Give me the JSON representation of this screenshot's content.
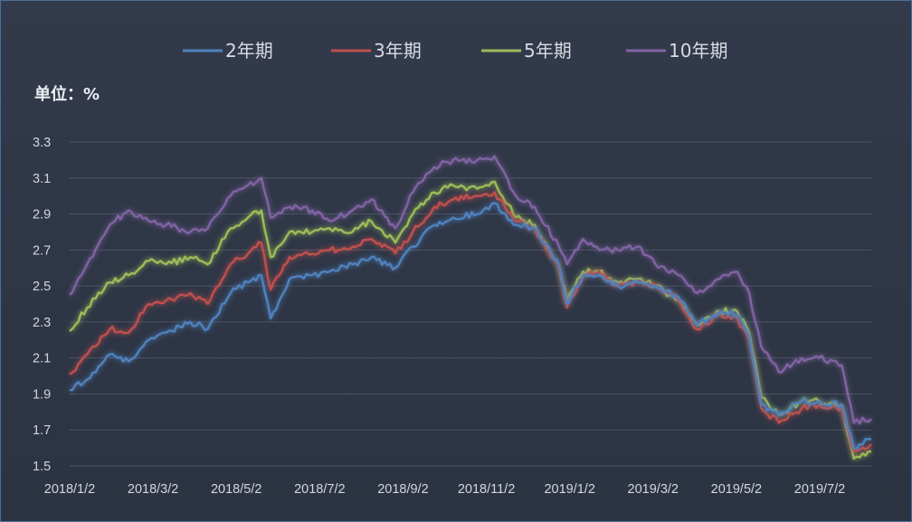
{
  "chart_data": {
    "type": "line",
    "unit_label": "单位：%",
    "x_tick_labels": [
      "2018/1/2",
      "2018/3/2",
      "2018/5/2",
      "2018/7/2",
      "2018/9/2",
      "2018/11/2",
      "2019/1/2",
      "2019/3/2",
      "2019/5/2",
      "2019/7/2"
    ],
    "y_ticks": [
      "1.5",
      "1.7",
      "1.9",
      "2.1",
      "2.3",
      "2.5",
      "2.7",
      "2.9",
      "3.1",
      "3.3"
    ],
    "ylim": [
      1.5,
      3.3
    ],
    "xlim": [
      "2018-01-02",
      "2019-08-23"
    ],
    "grid": "horizontal",
    "legend_position": "top",
    "x": [
      "2018-01-02",
      "2018-01-15",
      "2018-02-01",
      "2018-02-15",
      "2018-03-02",
      "2018-03-15",
      "2018-04-02",
      "2018-04-15",
      "2018-05-02",
      "2018-05-15",
      "2018-05-25",
      "2018-06-01",
      "2018-06-15",
      "2018-07-02",
      "2018-07-15",
      "2018-08-01",
      "2018-08-15",
      "2018-09-02",
      "2018-09-15",
      "2018-10-01",
      "2018-10-15",
      "2018-11-02",
      "2018-11-15",
      "2018-12-01",
      "2018-12-15",
      "2019-01-02",
      "2019-01-08",
      "2019-01-20",
      "2019-02-01",
      "2019-02-15",
      "2019-03-02",
      "2019-03-15",
      "2019-04-01",
      "2019-04-15",
      "2019-05-02",
      "2019-05-15",
      "2019-05-24",
      "2019-06-02",
      "2019-06-15",
      "2019-07-02",
      "2019-07-15",
      "2019-08-01",
      "2019-08-10",
      "2019-08-23"
    ],
    "series": [
      {
        "name": "2年期",
        "color": "#4f81bd",
        "values": [
          1.92,
          1.98,
          2.12,
          2.08,
          2.2,
          2.24,
          2.3,
          2.26,
          2.46,
          2.52,
          2.56,
          2.32,
          2.54,
          2.56,
          2.58,
          2.62,
          2.66,
          2.6,
          2.72,
          2.84,
          2.88,
          2.9,
          2.96,
          2.84,
          2.82,
          2.62,
          2.4,
          2.56,
          2.56,
          2.5,
          2.52,
          2.5,
          2.44,
          2.28,
          2.36,
          2.34,
          2.22,
          1.84,
          1.78,
          1.86,
          1.86,
          1.84,
          1.6,
          1.65
        ]
      },
      {
        "name": "3年期",
        "color": "#c0504d",
        "values": [
          2.01,
          2.12,
          2.26,
          2.24,
          2.4,
          2.42,
          2.46,
          2.4,
          2.62,
          2.68,
          2.74,
          2.48,
          2.66,
          2.68,
          2.7,
          2.72,
          2.76,
          2.68,
          2.8,
          2.94,
          2.98,
          3.0,
          3.02,
          2.86,
          2.82,
          2.6,
          2.38,
          2.55,
          2.58,
          2.5,
          2.52,
          2.5,
          2.42,
          2.26,
          2.34,
          2.32,
          2.2,
          1.82,
          1.74,
          1.82,
          1.84,
          1.82,
          1.58,
          1.62
        ]
      },
      {
        "name": "5年期",
        "color": "#9bbb59",
        "values": [
          2.25,
          2.38,
          2.52,
          2.56,
          2.64,
          2.62,
          2.66,
          2.62,
          2.82,
          2.88,
          2.92,
          2.66,
          2.8,
          2.8,
          2.82,
          2.8,
          2.86,
          2.74,
          2.9,
          3.02,
          3.06,
          3.04,
          3.08,
          2.88,
          2.84,
          2.6,
          2.42,
          2.58,
          2.58,
          2.52,
          2.54,
          2.5,
          2.42,
          2.28,
          2.36,
          2.36,
          2.24,
          1.88,
          1.78,
          1.86,
          1.86,
          1.84,
          1.54,
          1.58
        ]
      },
      {
        "name": "10年期",
        "color": "#8064a2",
        "values": [
          2.45,
          2.62,
          2.84,
          2.92,
          2.86,
          2.84,
          2.8,
          2.82,
          3.0,
          3.06,
          3.1,
          2.88,
          2.94,
          2.92,
          2.86,
          2.92,
          2.98,
          2.82,
          3.02,
          3.16,
          3.2,
          3.2,
          3.22,
          3.0,
          2.94,
          2.72,
          2.62,
          2.76,
          2.7,
          2.7,
          2.72,
          2.62,
          2.56,
          2.46,
          2.54,
          2.58,
          2.46,
          2.16,
          2.02,
          2.1,
          2.1,
          2.06,
          1.74,
          1.76
        ]
      }
    ]
  }
}
